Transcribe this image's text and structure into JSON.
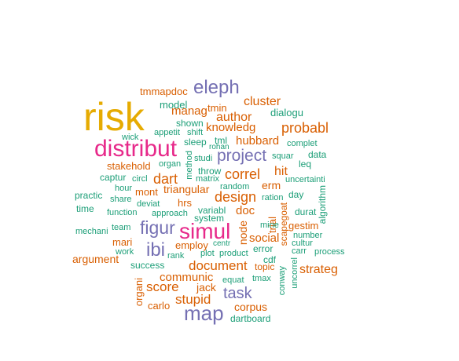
{
  "colors": {
    "orange": "#d95f02",
    "green": "#1b9e77",
    "purple": "#7570b3",
    "pink": "#e7298a",
    "gold": "#e6ab02"
  },
  "words": [
    {
      "text": "risk",
      "color": "gold"
    },
    {
      "text": "distribut",
      "color": "pink"
    },
    {
      "text": "simul",
      "color": "pink"
    },
    {
      "text": "eleph",
      "color": "purple"
    },
    {
      "text": "map",
      "color": "purple"
    },
    {
      "text": "figur",
      "color": "purple"
    },
    {
      "text": "ibi",
      "color": "purple"
    },
    {
      "text": "project",
      "color": "purple"
    },
    {
      "text": "task",
      "color": "purple"
    },
    {
      "text": "probabl",
      "color": "orange"
    },
    {
      "text": "document",
      "color": "orange"
    },
    {
      "text": "design",
      "color": "orange"
    },
    {
      "text": "correl",
      "color": "orange"
    },
    {
      "text": "cluster",
      "color": "orange"
    },
    {
      "text": "author",
      "color": "orange"
    },
    {
      "text": "knowledg",
      "color": "orange"
    },
    {
      "text": "hubbard",
      "color": "orange"
    },
    {
      "text": "dart",
      "color": "orange"
    },
    {
      "text": "stupid",
      "color": "orange"
    },
    {
      "text": "score",
      "color": "orange"
    },
    {
      "text": "strateg",
      "color": "orange"
    },
    {
      "text": "communic",
      "color": "orange"
    },
    {
      "text": "manag",
      "color": "orange"
    },
    {
      "text": "hit",
      "color": "orange"
    },
    {
      "text": "social",
      "color": "orange"
    },
    {
      "text": "doc",
      "color": "orange"
    },
    {
      "text": "argument",
      "color": "orange"
    },
    {
      "text": "triangular",
      "color": "orange"
    },
    {
      "text": "jack",
      "color": "orange"
    },
    {
      "text": "corpus",
      "color": "orange"
    },
    {
      "text": "erm",
      "color": "orange"
    },
    {
      "text": "node",
      "color": "orange"
    },
    {
      "text": "stakehold",
      "color": "orange"
    },
    {
      "text": "mont",
      "color": "orange"
    },
    {
      "text": "employ",
      "color": "orange"
    },
    {
      "text": "carlo",
      "color": "orange"
    },
    {
      "text": "tmmapdoc",
      "color": "orange"
    },
    {
      "text": "tmin",
      "color": "orange"
    },
    {
      "text": "hrs",
      "color": "orange"
    },
    {
      "text": "mari",
      "color": "orange"
    },
    {
      "text": "organi",
      "color": "orange"
    },
    {
      "text": "trial",
      "color": "orange"
    },
    {
      "text": "gestim",
      "color": "orange"
    },
    {
      "text": "topic",
      "color": "orange"
    },
    {
      "text": "scapegoat",
      "color": "orange"
    },
    {
      "text": "model",
      "color": "green"
    },
    {
      "text": "dialogu",
      "color": "green"
    },
    {
      "text": "shown",
      "color": "green"
    },
    {
      "text": "appetit",
      "color": "green"
    },
    {
      "text": "shift",
      "color": "green"
    },
    {
      "text": "wick",
      "color": "green"
    },
    {
      "text": "sleep",
      "color": "green"
    },
    {
      "text": "tml",
      "color": "green"
    },
    {
      "text": "rohan",
      "color": "green"
    },
    {
      "text": "complet",
      "color": "green"
    },
    {
      "text": "data",
      "color": "green"
    },
    {
      "text": "studi",
      "color": "green"
    },
    {
      "text": "squar",
      "color": "green"
    },
    {
      "text": "organ",
      "color": "green"
    },
    {
      "text": "method",
      "color": "green"
    },
    {
      "text": "leq",
      "color": "green"
    },
    {
      "text": "throw",
      "color": "green"
    },
    {
      "text": "circl",
      "color": "green"
    },
    {
      "text": "matrix",
      "color": "green"
    },
    {
      "text": "uncertainti",
      "color": "green"
    },
    {
      "text": "captur",
      "color": "green"
    },
    {
      "text": "hour",
      "color": "green"
    },
    {
      "text": "random",
      "color": "green"
    },
    {
      "text": "practic",
      "color": "green"
    },
    {
      "text": "share",
      "color": "green"
    },
    {
      "text": "ration",
      "color": "green"
    },
    {
      "text": "day",
      "color": "green"
    },
    {
      "text": "deviat",
      "color": "green"
    },
    {
      "text": "algorithm",
      "color": "green"
    },
    {
      "text": "time",
      "color": "green"
    },
    {
      "text": "function",
      "color": "green"
    },
    {
      "text": "approach",
      "color": "green"
    },
    {
      "text": "variabl",
      "color": "green"
    },
    {
      "text": "durat",
      "color": "green"
    },
    {
      "text": "system",
      "color": "green"
    },
    {
      "text": "mine",
      "color": "green"
    },
    {
      "text": "mechani",
      "color": "green"
    },
    {
      "text": "team",
      "color": "green"
    },
    {
      "text": "number",
      "color": "green"
    },
    {
      "text": "work",
      "color": "green"
    },
    {
      "text": "centr",
      "color": "green"
    },
    {
      "text": "cultur",
      "color": "green"
    },
    {
      "text": "plot",
      "color": "green"
    },
    {
      "text": "product",
      "color": "green"
    },
    {
      "text": "error",
      "color": "green"
    },
    {
      "text": "rank",
      "color": "green"
    },
    {
      "text": "carr",
      "color": "green"
    },
    {
      "text": "process",
      "color": "green"
    },
    {
      "text": "success",
      "color": "green"
    },
    {
      "text": "cdf",
      "color": "green"
    },
    {
      "text": "equat",
      "color": "green"
    },
    {
      "text": "tmax",
      "color": "green"
    },
    {
      "text": "conway",
      "color": "green"
    },
    {
      "text": "uncorrel",
      "color": "green"
    },
    {
      "text": "dartboard",
      "color": "green"
    }
  ]
}
